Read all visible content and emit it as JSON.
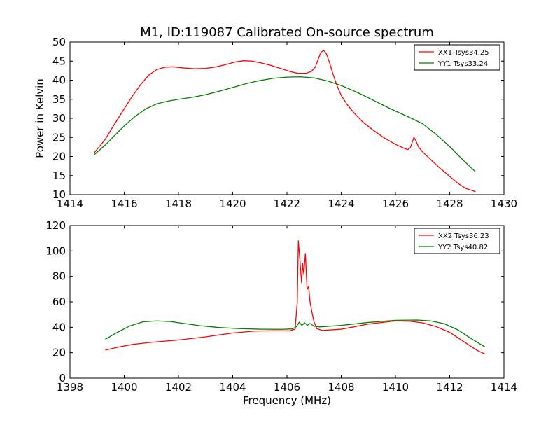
{
  "chart_data": [
    {
      "type": "line",
      "title": "M1, ID:119087 Calibrated On-source spectrum",
      "xlabel": "",
      "ylabel": "Power in Kelvin",
      "xlim": [
        1414,
        1430
      ],
      "ylim": [
        10,
        50
      ],
      "xticks": [
        1414,
        1416,
        1418,
        1420,
        1422,
        1424,
        1426,
        1428,
        1430
      ],
      "yticks": [
        10,
        15,
        20,
        25,
        30,
        35,
        40,
        45,
        50
      ],
      "grid": false,
      "legend_position": "top-right",
      "series": [
        {
          "name": "XX1 Tsys34.25",
          "color": "#ff0000",
          "points": [
            [
              1414.9,
              21.0
            ],
            [
              1415.3,
              24.5
            ],
            [
              1415.6,
              28.0
            ],
            [
              1416.0,
              32.5
            ],
            [
              1416.3,
              35.8
            ],
            [
              1416.6,
              38.8
            ],
            [
              1416.9,
              41.3
            ],
            [
              1417.2,
              42.8
            ],
            [
              1417.5,
              43.4
            ],
            [
              1417.8,
              43.5
            ],
            [
              1418.2,
              43.2
            ],
            [
              1418.6,
              43.0
            ],
            [
              1419.0,
              43.1
            ],
            [
              1419.4,
              43.5
            ],
            [
              1419.8,
              44.2
            ],
            [
              1420.1,
              44.8
            ],
            [
              1420.4,
              45.1
            ],
            [
              1420.7,
              45.0
            ],
            [
              1421.0,
              44.6
            ],
            [
              1421.4,
              43.9
            ],
            [
              1421.8,
              43.0
            ],
            [
              1422.1,
              42.3
            ],
            [
              1422.4,
              41.8
            ],
            [
              1422.7,
              41.8
            ],
            [
              1422.9,
              42.3
            ],
            [
              1423.05,
              43.5
            ],
            [
              1423.15,
              45.5
            ],
            [
              1423.25,
              47.3
            ],
            [
              1423.35,
              47.8
            ],
            [
              1423.45,
              47.0
            ],
            [
              1423.55,
              45.0
            ],
            [
              1423.7,
              41.5
            ],
            [
              1423.85,
              38.5
            ],
            [
              1424.0,
              36.0
            ],
            [
              1424.2,
              33.8
            ],
            [
              1424.5,
              31.2
            ],
            [
              1424.8,
              29.0
            ],
            [
              1425.2,
              26.8
            ],
            [
              1425.6,
              24.8
            ],
            [
              1426.0,
              23.2
            ],
            [
              1426.3,
              22.2
            ],
            [
              1426.45,
              21.8
            ],
            [
              1426.55,
              22.3
            ],
            [
              1426.62,
              23.8
            ],
            [
              1426.68,
              25.0
            ],
            [
              1426.75,
              24.2
            ],
            [
              1426.85,
              22.5
            ],
            [
              1427.0,
              21.2
            ],
            [
              1427.3,
              19.2
            ],
            [
              1427.6,
              17.2
            ],
            [
              1428.0,
              14.8
            ],
            [
              1428.3,
              13.0
            ],
            [
              1428.6,
              11.6
            ],
            [
              1428.95,
              10.8
            ]
          ]
        },
        {
          "name": "YY1 Tsys33.24",
          "color": "#008000",
          "points": [
            [
              1414.9,
              20.5
            ],
            [
              1415.3,
              23.0
            ],
            [
              1415.6,
              25.2
            ],
            [
              1416.0,
              28.0
            ],
            [
              1416.4,
              30.5
            ],
            [
              1416.8,
              32.5
            ],
            [
              1417.2,
              33.8
            ],
            [
              1417.6,
              34.5
            ],
            [
              1418.0,
              35.0
            ],
            [
              1418.5,
              35.5
            ],
            [
              1419.0,
              36.2
            ],
            [
              1419.5,
              37.1
            ],
            [
              1420.0,
              38.1
            ],
            [
              1420.5,
              39.1
            ],
            [
              1421.0,
              39.9
            ],
            [
              1421.5,
              40.5
            ],
            [
              1422.0,
              40.8
            ],
            [
              1422.5,
              40.9
            ],
            [
              1423.0,
              40.6
            ],
            [
              1423.5,
              39.8
            ],
            [
              1424.0,
              38.6
            ],
            [
              1424.5,
              37.1
            ],
            [
              1425.0,
              35.4
            ],
            [
              1425.5,
              33.6
            ],
            [
              1426.0,
              31.9
            ],
            [
              1426.5,
              30.3
            ],
            [
              1427.0,
              28.6
            ],
            [
              1427.5,
              25.8
            ],
            [
              1428.0,
              22.6
            ],
            [
              1428.5,
              19.0
            ],
            [
              1428.95,
              16.0
            ]
          ]
        }
      ]
    },
    {
      "type": "line",
      "title": "",
      "xlabel": "Frequency (MHz)",
      "ylabel": "",
      "xlim": [
        1398,
        1414
      ],
      "ylim": [
        0,
        120
      ],
      "xticks": [
        1398,
        1400,
        1402,
        1404,
        1406,
        1408,
        1410,
        1412,
        1414
      ],
      "yticks": [
        0,
        20,
        40,
        60,
        80,
        100,
        120
      ],
      "grid": false,
      "legend_position": "top-right",
      "series": [
        {
          "name": "XX2 Tsys36.23",
          "color": "#ff0000",
          "points": [
            [
              1399.3,
              22.0
            ],
            [
              1399.8,
              24.5
            ],
            [
              1400.3,
              26.5
            ],
            [
              1401.0,
              28.2
            ],
            [
              1402.0,
              30.0
            ],
            [
              1403.0,
              32.5
            ],
            [
              1404.0,
              35.5
            ],
            [
              1404.8,
              37.0
            ],
            [
              1405.5,
              37.3
            ],
            [
              1406.1,
              37.2
            ],
            [
              1406.3,
              38.5
            ],
            [
              1406.38,
              60.0
            ],
            [
              1406.42,
              108.0
            ],
            [
              1406.48,
              92.0
            ],
            [
              1406.54,
              75.0
            ],
            [
              1406.58,
              90.0
            ],
            [
              1406.62,
              82.0
            ],
            [
              1406.68,
              98.0
            ],
            [
              1406.74,
              70.0
            ],
            [
              1406.8,
              72.0
            ],
            [
              1406.85,
              60.0
            ],
            [
              1406.92,
              52.0
            ],
            [
              1407.0,
              44.0
            ],
            [
              1407.1,
              39.0
            ],
            [
              1407.3,
              37.5
            ],
            [
              1408.0,
              38.5
            ],
            [
              1409.0,
              42.5
            ],
            [
              1410.0,
              45.0
            ],
            [
              1410.5,
              44.8
            ],
            [
              1411.0,
              43.5
            ],
            [
              1411.5,
              40.5
            ],
            [
              1412.0,
              36.0
            ],
            [
              1412.5,
              29.0
            ],
            [
              1413.0,
              22.0
            ],
            [
              1413.3,
              19.0
            ]
          ]
        },
        {
          "name": "YY2 Tsys40.82",
          "color": "#008000",
          "points": [
            [
              1399.3,
              30.5
            ],
            [
              1399.7,
              35.5
            ],
            [
              1400.2,
              41.0
            ],
            [
              1400.7,
              44.3
            ],
            [
              1401.2,
              45.0
            ],
            [
              1401.7,
              44.5
            ],
            [
              1402.2,
              43.0
            ],
            [
              1402.8,
              41.2
            ],
            [
              1403.5,
              39.8
            ],
            [
              1404.2,
              39.0
            ],
            [
              1405.0,
              38.5
            ],
            [
              1405.8,
              38.4
            ],
            [
              1406.2,
              38.7
            ],
            [
              1406.35,
              40.5
            ],
            [
              1406.45,
              44.0
            ],
            [
              1406.55,
              41.5
            ],
            [
              1406.65,
              43.5
            ],
            [
              1406.75,
              41.5
            ],
            [
              1406.85,
              43.0
            ],
            [
              1407.0,
              40.8
            ],
            [
              1407.2,
              40.3
            ],
            [
              1408.0,
              41.5
            ],
            [
              1409.0,
              43.8
            ],
            [
              1410.0,
              45.5
            ],
            [
              1410.8,
              45.7
            ],
            [
              1411.3,
              45.0
            ],
            [
              1411.8,
              42.8
            ],
            [
              1412.3,
              38.0
            ],
            [
              1412.8,
              31.0
            ],
            [
              1413.3,
              24.5
            ]
          ]
        }
      ]
    }
  ]
}
